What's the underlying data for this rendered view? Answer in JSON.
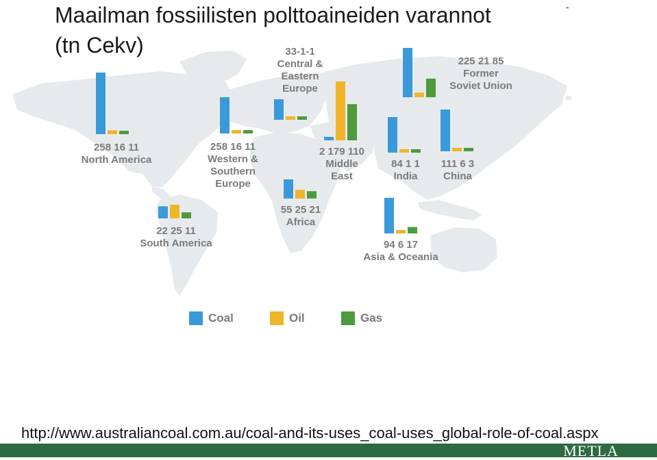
{
  "title": {
    "line1": "Maailman fossiilisten polttoaineiden varannot",
    "line2": "(tn Cekv)",
    "dash": "-"
  },
  "colors": {
    "coal": "#3a9ad9",
    "oil": "#f0b429",
    "gas": "#4e9a3c",
    "map": "#e6eaed",
    "footer": "#2d6a40"
  },
  "chart_data": {
    "type": "bar",
    "series_names": [
      "Coal",
      "Oil",
      "Gas"
    ],
    "regions": [
      {
        "name_lines": [
          "North America"
        ],
        "values": [
          258,
          16,
          11
        ],
        "value_text": "258  16  11"
      },
      {
        "name_lines": [
          "Western &",
          "Southern",
          "Europe"
        ],
        "values": [
          258,
          16,
          11
        ],
        "value_text": "258  16  11"
      },
      {
        "name_lines": [
          "Central &",
          "Eastern",
          "Europe"
        ],
        "values": [
          33,
          1,
          1
        ],
        "value_text": "33-1-1"
      },
      {
        "name_lines": [
          "Middle",
          "East"
        ],
        "values": [
          2,
          179,
          110
        ],
        "value_text": "2  179  110"
      },
      {
        "name_lines": [
          "Former",
          "Soviet Union"
        ],
        "values": [
          225,
          21,
          85
        ],
        "value_text": "225  21  85"
      },
      {
        "name_lines": [
          "India"
        ],
        "values": [
          84,
          1,
          1
        ],
        "value_text": "84  1  1"
      },
      {
        "name_lines": [
          "China"
        ],
        "values": [
          111,
          6,
          3
        ],
        "value_text": "111  6  3"
      },
      {
        "name_lines": [
          "Africa"
        ],
        "values": [
          55,
          25,
          21
        ],
        "value_text": "55  25  21"
      },
      {
        "name_lines": [
          "South America"
        ],
        "values": [
          22,
          25,
          11
        ],
        "value_text": "22  25  11"
      },
      {
        "name_lines": [
          "Asia & Oceania"
        ],
        "values": [
          94,
          6,
          17
        ],
        "value_text": "94  6  17"
      }
    ]
  },
  "legend": {
    "coal": "Coal",
    "oil": "Oil",
    "gas": "Gas"
  },
  "source_url": "http://www.australiancoal.com.au/coal-and-its-uses_coal-uses_global-role-of-coal.aspx",
  "footer": {
    "logo": "METLA"
  }
}
